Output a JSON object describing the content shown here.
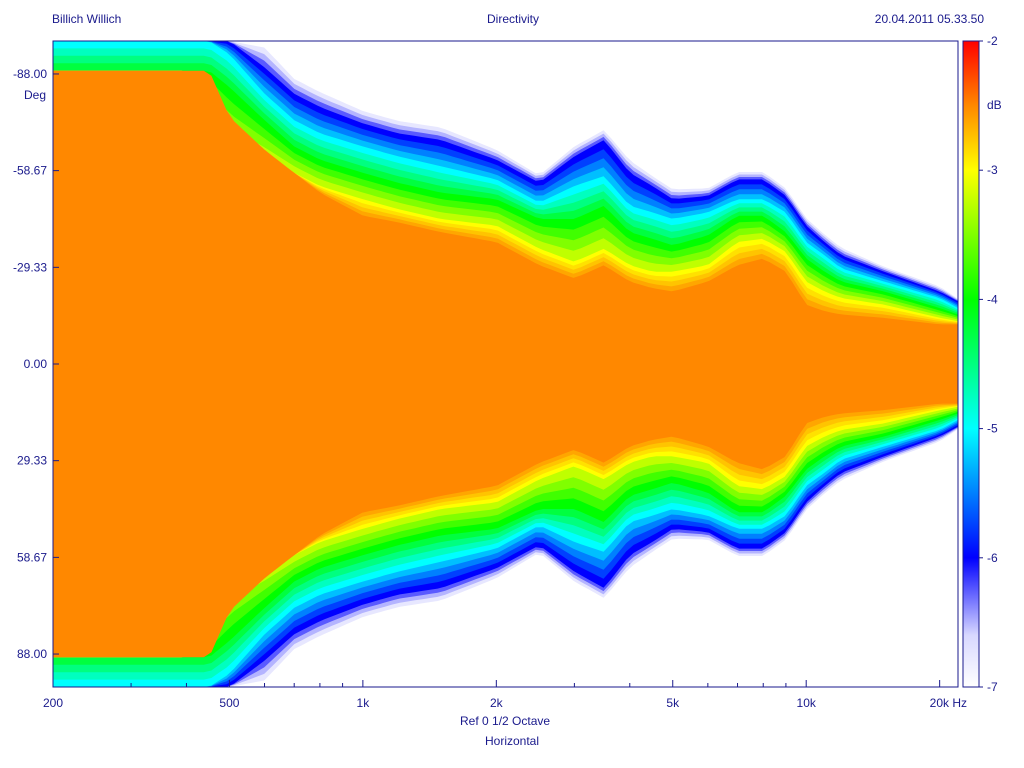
{
  "header": {
    "left": "Billich Willich",
    "center": "Directivity",
    "right": "20.04.2011 05.33.50"
  },
  "footer": {
    "reference": "Ref 0   1/2 Octave",
    "mode": "Horizontal"
  },
  "colors": {
    "axis": "#1a1a8c",
    "scale": [
      "#ffffff",
      "#d8d8ff",
      "#0000ff",
      "#00ffff",
      "#00ff00",
      "#ffff00",
      "#ff8800",
      "#ff0000"
    ]
  },
  "chart_data": {
    "type": "heatmap",
    "title": "Directivity",
    "xlabel": "",
    "ylabel": "Deg",
    "colorbar_label": "dB",
    "x_scale": "log",
    "xlim": [
      200,
      22000
    ],
    "ylim": [
      -98,
      98
    ],
    "x_ticks": [
      200,
      500,
      1000,
      2000,
      5000,
      10000,
      20000
    ],
    "x_tick_labels": [
      "200",
      "500",
      "1k",
      "2k",
      "5k",
      "10k",
      "20k Hz"
    ],
    "y_ticks": [
      -88,
      -58.67,
      -29.33,
      0,
      29.33,
      58.67,
      88
    ],
    "y_tick_labels": [
      "-88.00",
      "-58.67",
      "-29.33",
      "0.00",
      "29.33",
      "58.67",
      "88.00"
    ],
    "colorbar_range": [
      -7,
      -2
    ],
    "colorbar_ticks": [
      -2,
      -3,
      -4,
      -5,
      -6,
      -7
    ],
    "colorbar_tick_labels": [
      "-2",
      "-3",
      "-4",
      "-5",
      "-6",
      "-7"
    ],
    "contour_freq_hz": [
      200,
      250,
      300,
      350,
      400,
      450,
      500,
      600,
      700,
      800,
      1000,
      1200,
      1500,
      2000,
      2500,
      3000,
      3500,
      4000,
      4500,
      5000,
      6000,
      7000,
      8000,
      9000,
      10000,
      11000,
      12000,
      15000,
      20000,
      22000
    ],
    "contours": [
      {
        "level_db": -2.5,
        "angle_deg": [
          89,
          89,
          89,
          89,
          89,
          89,
          75,
          65,
          58,
          52,
          45,
          43,
          40,
          37,
          30,
          26,
          30,
          25,
          23,
          22,
          25,
          30,
          32,
          28,
          18,
          16,
          15,
          14,
          12,
          12
        ]
      },
      {
        "level_db": -3.0,
        "angle_deg": [
          89,
          89,
          89,
          89,
          89,
          78,
          68,
          63,
          58,
          54,
          50,
          47,
          44,
          42,
          35,
          31,
          35,
          30,
          28,
          28,
          30,
          37,
          38,
          34,
          25,
          22,
          20,
          18,
          14,
          13
        ]
      },
      {
        "level_db": -4.0,
        "angle_deg": [
          89,
          89,
          89,
          89,
          89,
          89,
          84,
          74,
          66,
          62,
          58,
          55,
          52,
          50,
          44,
          44,
          48,
          40,
          38,
          36,
          39,
          45,
          45,
          40,
          32,
          28,
          25,
          22,
          17,
          15
        ]
      },
      {
        "level_db": -5.0,
        "angle_deg": [
          98,
          98,
          98,
          98,
          98,
          98,
          94,
          82,
          74,
          70,
          66,
          63,
          60,
          56,
          49,
          54,
          57,
          48,
          46,
          44,
          46,
          50,
          50,
          46,
          37,
          33,
          29,
          25,
          20,
          17
        ]
      },
      {
        "level_db": -6.0,
        "angle_deg": [
          98,
          98,
          98,
          98,
          98,
          98,
          98,
          90,
          82,
          78,
          73,
          70,
          68,
          62,
          55,
          63,
          68,
          58,
          54,
          50,
          51,
          56,
          56,
          51,
          42,
          37,
          33,
          28,
          22,
          19
        ]
      },
      {
        "level_db": -7.0,
        "angle_deg": [
          98,
          98,
          98,
          98,
          98,
          98,
          98,
          98,
          88,
          84,
          78,
          75,
          73,
          66,
          58,
          67,
          72,
          63,
          58,
          54,
          54,
          59,
          59,
          54,
          45,
          40,
          36,
          30,
          24,
          20
        ]
      }
    ]
  }
}
